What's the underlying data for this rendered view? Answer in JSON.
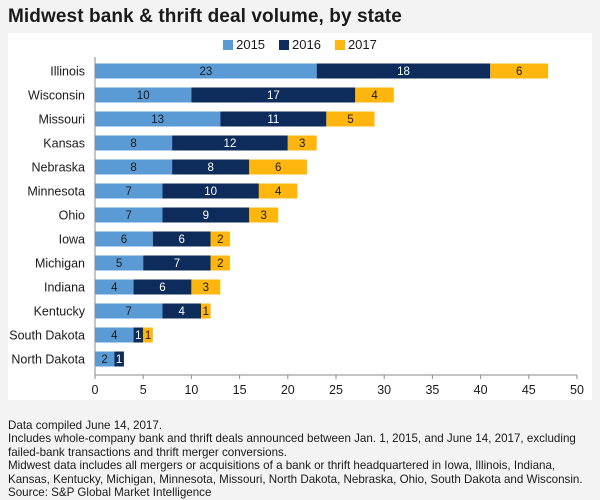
{
  "title": "Midwest bank & thrift deal volume, by state",
  "colors": {
    "2015": "#5b9bd5",
    "2016": "#0d2c5b",
    "2017": "#ffb60f"
  },
  "chart_data": {
    "type": "bar",
    "orientation": "horizontal",
    "stacked": true,
    "categories": [
      "Illinois",
      "Wisconsin",
      "Missouri",
      "Kansas",
      "Nebraska",
      "Minnesota",
      "Ohio",
      "Iowa",
      "Michigan",
      "Indiana",
      "Kentucky",
      "South Dakota",
      "North Dakota"
    ],
    "series": [
      {
        "name": "2015",
        "values": [
          23,
          10,
          13,
          8,
          8,
          7,
          7,
          6,
          5,
          4,
          7,
          4,
          2
        ]
      },
      {
        "name": "2016",
        "values": [
          18,
          17,
          11,
          12,
          8,
          10,
          9,
          6,
          7,
          6,
          4,
          1,
          1
        ]
      },
      {
        "name": "2017",
        "values": [
          6,
          4,
          5,
          3,
          6,
          4,
          3,
          2,
          2,
          3,
          1,
          1,
          0
        ]
      }
    ],
    "xlim": [
      0,
      50
    ],
    "xticks": [
      0,
      5,
      10,
      15,
      20,
      25,
      30,
      35,
      40,
      45,
      50
    ],
    "legend": "top-center",
    "grid": false
  },
  "notes": [
    "Data compiled June 14, 2017.",
    "Includes whole-company bank and thrift deals announced between Jan. 1, 2015, and June 14, 2017, excluding",
    "failed-bank transactions and thrift merger conversions.",
    "Midwest data includes all mergers or acquisitions of a bank or thrift headquartered in Iowa, Illinois, Indiana,",
    "Kansas, Kentucky, Michigan, Minnesota, Missouri, North Dakota, Nebraska, Ohio, South Dakota and Wisconsin.",
    "Source: S&P Global Market Intelligence"
  ]
}
